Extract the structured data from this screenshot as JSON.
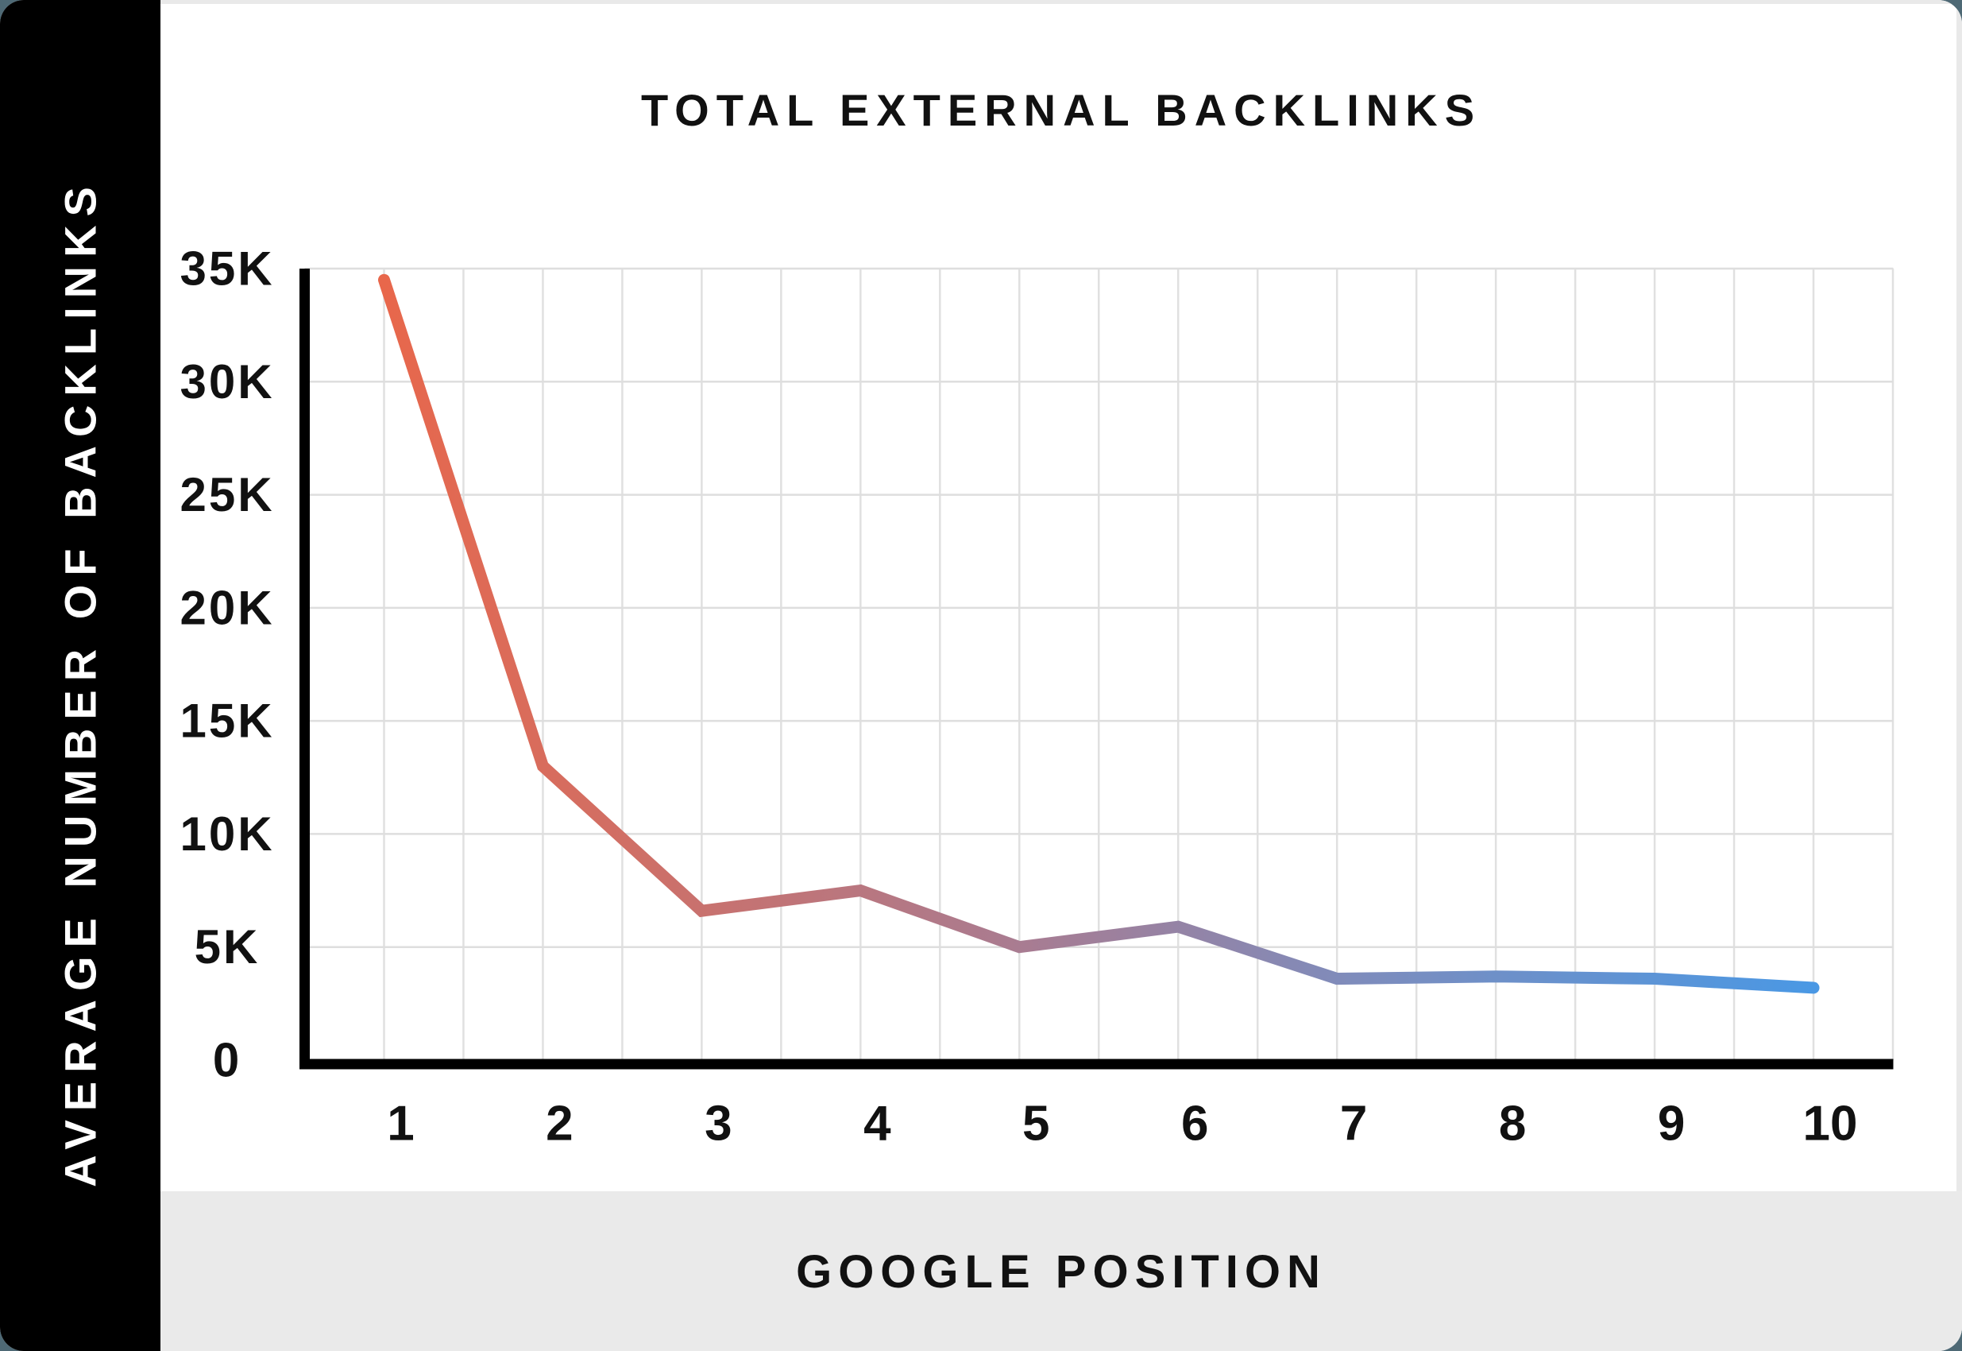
{
  "page": {
    "outer_background": "#4e6975",
    "card_background": "#ffffff",
    "edge_color": "#e9e9e9"
  },
  "sidebar": {
    "label": "AVERAGE NUMBER OF BACKLINKS",
    "background": "#000000",
    "text_color": "#ffffff"
  },
  "header": {
    "title": "TOTAL EXTERNAL BACKLINKS"
  },
  "footer": {
    "label": "GOOGLE POSITION",
    "background": "#eaeaea"
  },
  "chart_data": {
    "type": "line",
    "title": "TOTAL EXTERNAL BACKLINKS",
    "xlabel": "GOOGLE POSITION",
    "ylabel": "AVERAGE NUMBER OF BACKLINKS",
    "x": [
      1,
      2,
      3,
      4,
      5,
      6,
      7,
      8,
      9,
      10
    ],
    "values_thousands": [
      34.5,
      13.0,
      6.6,
      7.5,
      5.0,
      5.9,
      3.6,
      3.7,
      3.6,
      3.2
    ],
    "x_ticks": [
      "1",
      "2",
      "3",
      "4",
      "5",
      "6",
      "7",
      "8",
      "9",
      "10"
    ],
    "y_ticks": [
      "35K",
      "30K",
      "25K",
      "20K",
      "15K",
      "10K",
      "5K",
      "0"
    ],
    "y_tick_values_thousands": [
      35,
      30,
      25,
      20,
      15,
      10,
      5,
      0
    ],
    "ylim_k": [
      0,
      35
    ],
    "grid": true,
    "grid_color": "#e0e0e0",
    "axis_color": "#000000",
    "legend": "none",
    "line_gradient": [
      "#e8674b",
      "#a87c92",
      "#7e8cbc",
      "#4a98e4"
    ],
    "gradient_stops": [
      0,
      0.45,
      0.68,
      1
    ]
  }
}
